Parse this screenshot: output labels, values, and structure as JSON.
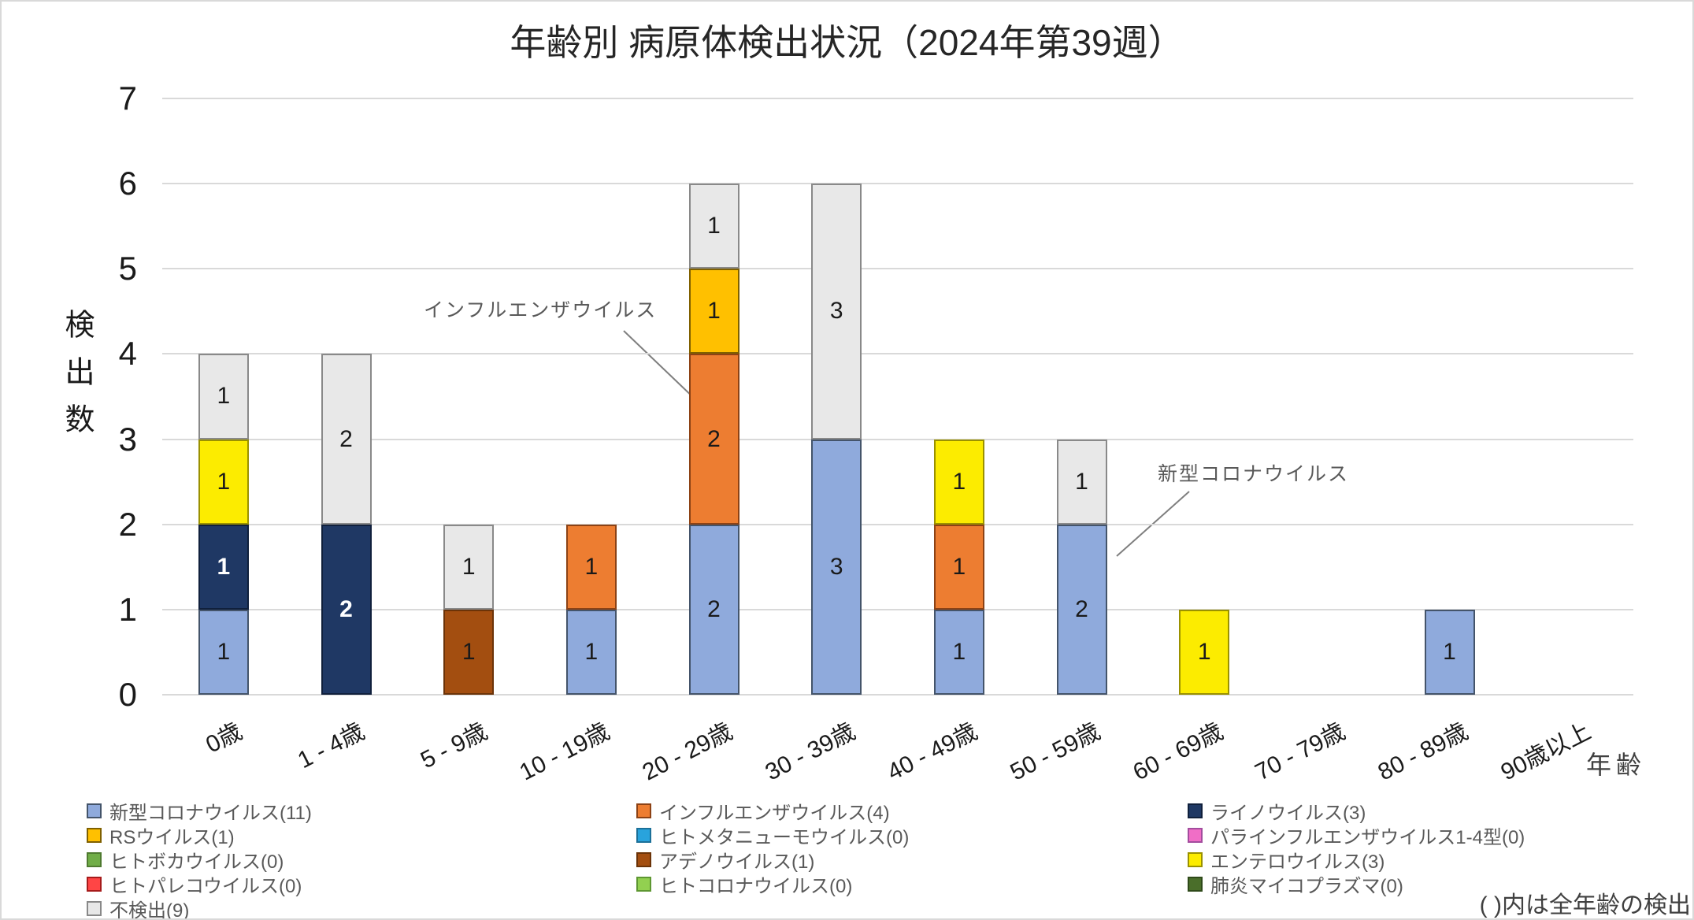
{
  "title": "年齢別 病原体検出状況（2024年第39週）",
  "footnote": "( )内は全年齢の検出",
  "annotations": [
    {
      "text": "インフルエンザウイルス",
      "target": "20 - 29歳 インフルエンザウイルス segment"
    },
    {
      "text": "新型コロナウイルス",
      "target": "50 - 59歳 新型コロナウイルス segment"
    }
  ],
  "chart_data": {
    "type": "bar",
    "stacked": true,
    "grid": true,
    "legend_position": "bottom",
    "title": "年齢別 病原体検出状況（2024年第39週）",
    "xlabel": "年齢",
    "ylabel": "検出数",
    "ylim": [
      0,
      7
    ],
    "yticks": [
      0,
      1,
      2,
      3,
      4,
      5,
      6,
      7
    ],
    "categories": [
      "0歳",
      "1 - 4歳",
      "5 - 9歳",
      "10 - 19歳",
      "20 - 29歳",
      "30 - 39歳",
      "40 - 49歳",
      "50 - 59歳",
      "60 - 69歳",
      "70 - 79歳",
      "80 - 89歳",
      "90歳以上"
    ],
    "series": [
      {
        "name": "新型コロナウイルス",
        "total": 11,
        "legend_label": "新型コロナウイルス(11)",
        "color": "#8FAADC",
        "border": "#44546A",
        "label_color": "#1a1a1a",
        "values": [
          1,
          0,
          0,
          1,
          2,
          3,
          1,
          2,
          0,
          0,
          1,
          0
        ]
      },
      {
        "name": "インフルエンザウイルス",
        "total": 4,
        "legend_label": "インフルエンザウイルス(4)",
        "color": "#ED7D31",
        "border": "#8C4215",
        "label_color": "#1a1a1a",
        "values": [
          0,
          0,
          0,
          1,
          2,
          0,
          1,
          0,
          0,
          0,
          0,
          0
        ]
      },
      {
        "name": "ライノウイルス",
        "total": 3,
        "legend_label": "ライノウイルス(3)",
        "color": "#1F3864",
        "border": "#10203C",
        "label_color": "#ffffff",
        "values": [
          1,
          2,
          0,
          0,
          0,
          0,
          0,
          0,
          0,
          0,
          0,
          0
        ]
      },
      {
        "name": "RSウイルス",
        "total": 1,
        "legend_label": "RSウイルス(1)",
        "color": "#FFC000",
        "border": "#7F6000",
        "label_color": "#1a1a1a",
        "values": [
          0,
          0,
          0,
          0,
          1,
          0,
          0,
          0,
          0,
          0,
          0,
          0
        ]
      },
      {
        "name": "ヒトメタニューモウイルス",
        "total": 0,
        "legend_label": "ヒトメタニューモウイルス(0)",
        "color": "#29A3DC",
        "border": "#1C7099",
        "label_color": "#1a1a1a",
        "values": [
          0,
          0,
          0,
          0,
          0,
          0,
          0,
          0,
          0,
          0,
          0,
          0
        ]
      },
      {
        "name": "パラインフルエンザウイルス1-4型",
        "total": 0,
        "legend_label": "パラインフルエンザウイルス1-4型(0)",
        "color": "#F06EC6",
        "border": "#A34D9E",
        "label_color": "#1a1a1a",
        "values": [
          0,
          0,
          0,
          0,
          0,
          0,
          0,
          0,
          0,
          0,
          0,
          0
        ]
      },
      {
        "name": "ヒトボカウイルス",
        "total": 0,
        "legend_label": "ヒトボカウイルス(0)",
        "color": "#70AD47",
        "border": "#4F7A30",
        "label_color": "#1a1a1a",
        "values": [
          0,
          0,
          0,
          0,
          0,
          0,
          0,
          0,
          0,
          0,
          0,
          0
        ]
      },
      {
        "name": "アデノウイルス",
        "total": 1,
        "legend_label": "アデノウイルス(1)",
        "color": "#A34E10",
        "border": "#6B3308",
        "label_color": "#1a1a1a",
        "values": [
          0,
          0,
          1,
          0,
          0,
          0,
          0,
          0,
          0,
          0,
          0,
          0
        ]
      },
      {
        "name": "エンテロウイルス",
        "total": 3,
        "legend_label": "エンテロウイルス(3)",
        "color": "#FCEC00",
        "border": "#9A9100",
        "label_color": "#1a1a1a",
        "values": [
          1,
          0,
          0,
          0,
          0,
          0,
          1,
          0,
          1,
          0,
          0,
          0
        ]
      },
      {
        "name": "ヒトパレコウイルス",
        "total": 0,
        "legend_label": "ヒトパレコウイルス(0)",
        "color": "#FF4545",
        "border": "#A61B1B",
        "label_color": "#1a1a1a",
        "values": [
          0,
          0,
          0,
          0,
          0,
          0,
          0,
          0,
          0,
          0,
          0,
          0
        ]
      },
      {
        "name": "ヒトコロナウイルス",
        "total": 0,
        "legend_label": "ヒトコロナウイルス(0)",
        "color": "#92D050",
        "border": "#5E9732",
        "label_color": "#1a1a1a",
        "values": [
          0,
          0,
          0,
          0,
          0,
          0,
          0,
          0,
          0,
          0,
          0,
          0
        ]
      },
      {
        "name": "肺炎マイコプラズマ",
        "total": 0,
        "legend_label": "肺炎マイコプラズマ(0)",
        "color": "#4A6E2A",
        "border": "#2F4A1A",
        "label_color": "#1a1a1a",
        "values": [
          0,
          0,
          0,
          0,
          0,
          0,
          0,
          0,
          0,
          0,
          0,
          0
        ]
      },
      {
        "name": "不検出",
        "total": 9,
        "legend_label": "不検出(9)",
        "color": "#E8E8E8",
        "border": "#898989",
        "label_color": "#1a1a1a",
        "values": [
          1,
          2,
          1,
          0,
          1,
          3,
          0,
          1,
          0,
          0,
          0,
          0
        ]
      }
    ]
  },
  "legend_columns": [
    [
      0,
      3,
      6,
      9,
      12
    ],
    [
      1,
      4,
      7,
      10
    ],
    [
      2,
      5,
      8,
      11
    ]
  ]
}
